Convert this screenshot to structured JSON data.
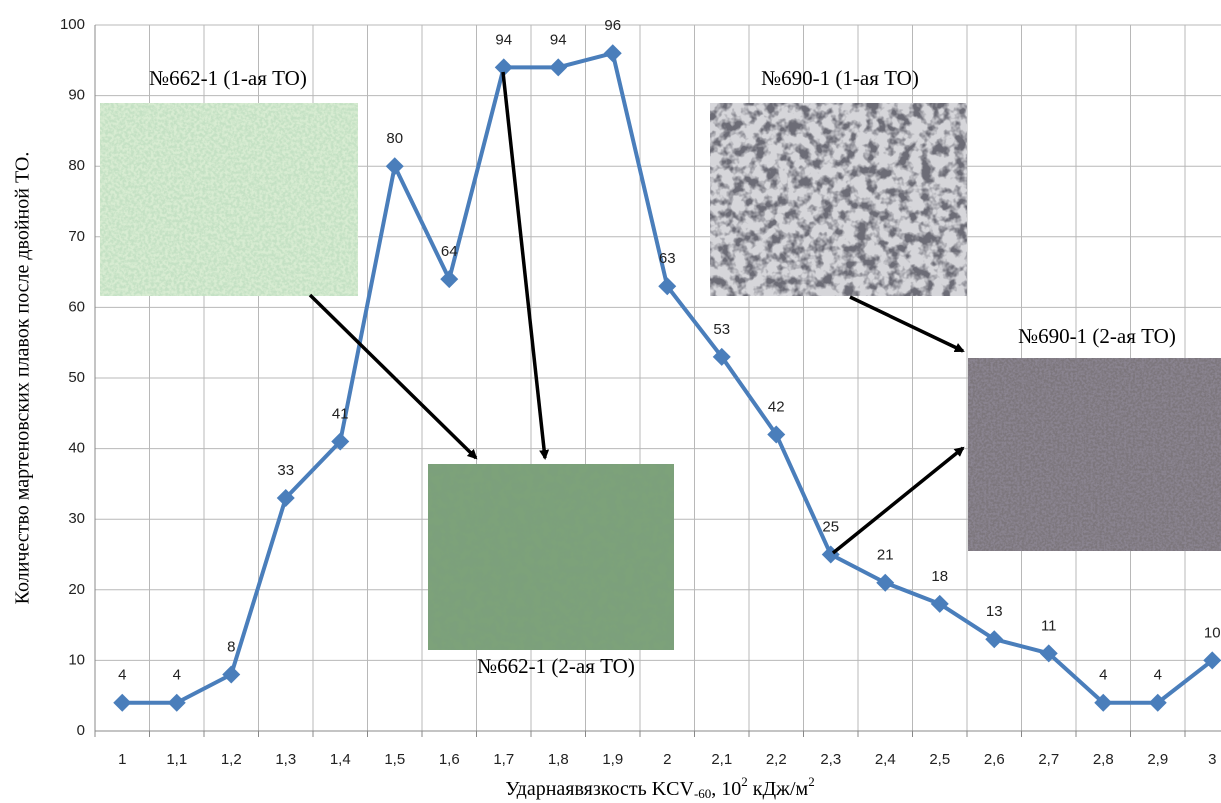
{
  "chart_data": {
    "type": "line",
    "y_label": "Количество мартеновских плавок после двойной ТО.",
    "x_label": [
      "Ударнаявязкость KCV",
      "-60",
      ", 10",
      "2",
      " кДж/м",
      "2"
    ],
    "categories": [
      "1",
      "1,1",
      "1,2",
      "1,3",
      "1,4",
      "1,5",
      "1,6",
      "1,7",
      "1,8",
      "1,9",
      "2",
      "2,1",
      "2,2",
      "2,3",
      "2,4",
      "2,5",
      "2,6",
      "2,7",
      "2,8",
      "2,9",
      "3"
    ],
    "values": [
      4,
      4,
      8,
      33,
      41,
      80,
      64,
      94,
      94,
      96,
      63,
      53,
      42,
      25,
      21,
      18,
      13,
      11,
      4,
      4,
      10
    ],
    "color": "#4a7ebb",
    "ylim": [
      0,
      100
    ],
    "yticks": [
      0,
      10,
      20,
      30,
      40,
      50,
      60,
      70,
      80,
      90,
      100
    ],
    "grid": true,
    "annotations": [
      "№662-1 (1-ая ТО)",
      "№690-1 (1-ая ТО)",
      "№690-1 (2-ая ТО)",
      "№662-1 (2-ая ТО)"
    ]
  }
}
